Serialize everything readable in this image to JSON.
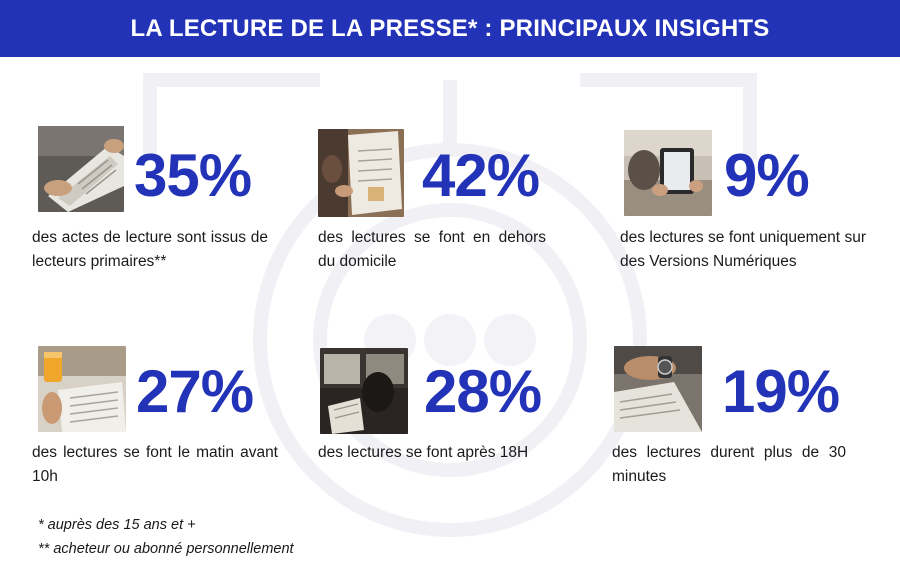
{
  "header": {
    "title": "LA LECTURE DE LA PRESSE* : PRINCIPAUX INSIGHTS"
  },
  "colors": {
    "accent": "#2233b8",
    "text": "#1a1a1a",
    "watermark": "#f2f2f5"
  },
  "insights": [
    {
      "value": "35%",
      "description": "des actes de lecture sont issus de lecteurs primaires**",
      "image": "hands-holding-newspaper"
    },
    {
      "value": "42%",
      "description": "des lectures se font en dehors du domicile",
      "image": "person-reading-newspaper-outdoors"
    },
    {
      "value": "9%",
      "description": "des lectures se font uniquement sur des Versions Numériques",
      "image": "hands-holding-tablet"
    },
    {
      "value": "27%",
      "description": "des lectures se font le matin avant 10h",
      "image": "newspaper-with-orange-juice"
    },
    {
      "value": "28%",
      "description": "des lectures se font après 18H",
      "image": "woman-reading-on-train"
    },
    {
      "value": "19%",
      "description": "des lectures durent plus de 30 minutes",
      "image": "hand-with-watch-on-newspaper"
    }
  ],
  "footnotes": [
    "* auprès des 15 ans et +",
    "** acheteur ou abonné personnellement"
  ]
}
